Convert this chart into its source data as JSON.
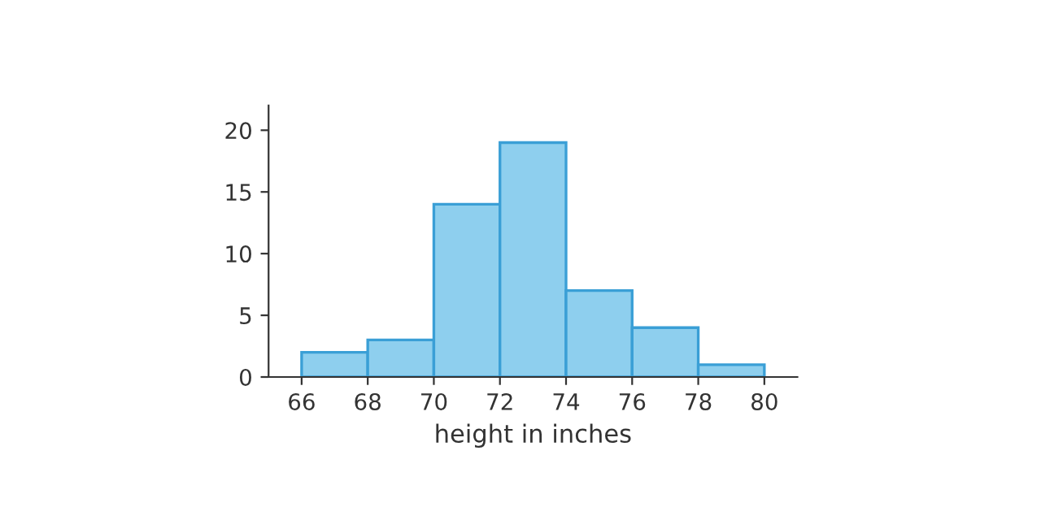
{
  "chart_data": {
    "type": "histogram",
    "xlabel": "height in inches",
    "bins": [
      66,
      68,
      70,
      72,
      74,
      76,
      78,
      80
    ],
    "values": [
      2,
      3,
      14,
      19,
      7,
      4,
      1
    ],
    "color": "#8ecfee",
    "xlim": [
      65,
      81
    ],
    "xticks": [
      66,
      68,
      70,
      72,
      74,
      76,
      78,
      80
    ],
    "ylim": [
      0,
      22
    ],
    "yticks": [
      0,
      5,
      10,
      15,
      20
    ],
    "grid": false
  }
}
